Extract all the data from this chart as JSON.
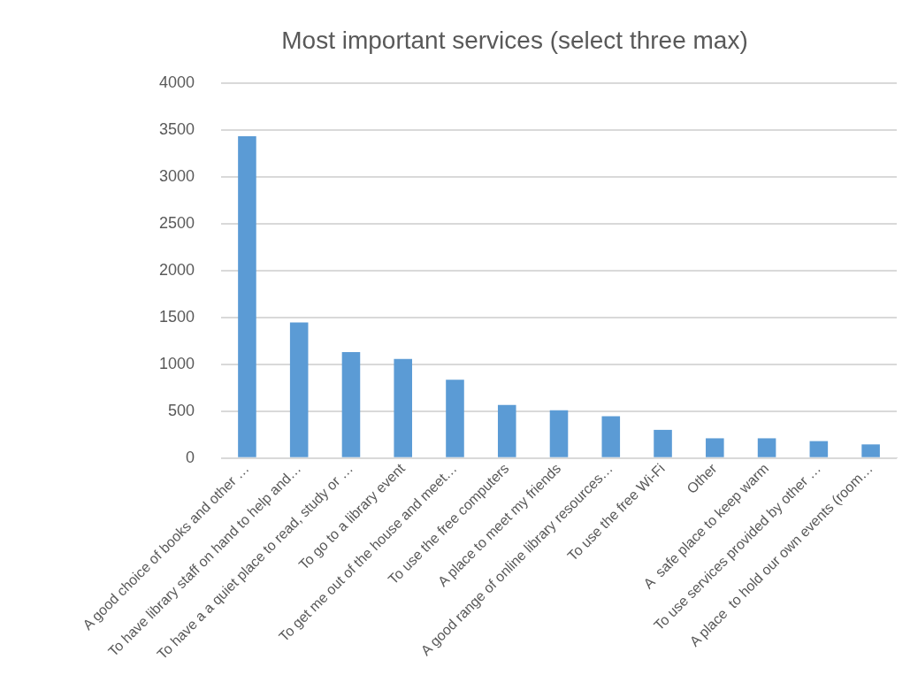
{
  "chart_data": {
    "type": "bar",
    "title": "Most important services (select three max)",
    "categories": [
      "A good choice of books and other …",
      "To have library staff on hand to help and…",
      "To have a a quiet place to read, study or …",
      "To go to a library event",
      "To get me out of the house and meet…",
      "To use the free computers",
      "A place to meet my friends",
      "A good range of online library resources…",
      "To use the free Wi-Fi",
      "Other",
      "A  safe place to keep warm",
      "To use services provided by other …",
      "A place  to hold our own events (room…"
    ],
    "values": [
      3430,
      1445,
      1130,
      1055,
      835,
      565,
      510,
      445,
      300,
      210,
      210,
      180,
      145
    ],
    "color": "#5b9bd5",
    "ylim": [
      0,
      4000
    ],
    "yticks": [
      0,
      500,
      1000,
      1500,
      2000,
      2500,
      3000,
      3500,
      4000
    ],
    "grid": "y"
  }
}
